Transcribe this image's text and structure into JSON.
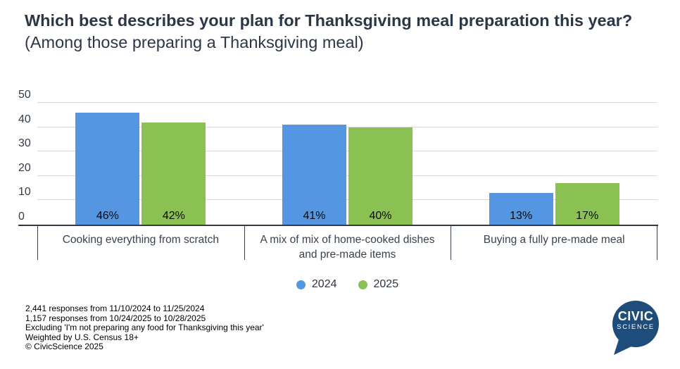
{
  "title": {
    "bold": "Which best describes your plan for Thanksgiving meal preparation this year?",
    "subtitle": " (Among those preparing a Thanksgiving meal)"
  },
  "chart_data": {
    "type": "bar",
    "categories": [
      "Cooking everything from scratch",
      "A mix of mix of home-cooked dishes and pre-made items",
      "Buying a fully pre-made meal"
    ],
    "series": [
      {
        "name": "2024",
        "color": "#5596e2",
        "values": [
          46,
          41,
          13
        ]
      },
      {
        "name": "2025",
        "color": "#8bc152",
        "values": [
          42,
          40,
          17
        ]
      }
    ],
    "value_suffix": "%",
    "ylim": [
      0,
      50
    ],
    "yticks": [
      0,
      10,
      20,
      30,
      40,
      50
    ],
    "grid": true,
    "legend_position": "bottom"
  },
  "footer": {
    "lines": [
      "2,441 responses from 11/10/2024 to 11/25/2024",
      "1,157 responses from 10/24/2025 to 10/28/2025",
      "Excluding 'I'm not preparing any food for Thanksgiving this year'",
      "Weighted by U.S. Census 18+",
      "© CivicScience 2025"
    ]
  },
  "logo": {
    "line1": "CIVIC",
    "line2": "SCIENCE",
    "color": "#1e4d7b"
  },
  "colors": {
    "series_2024": "#5596e2",
    "series_2025": "#8bc152",
    "grid": "#d8d8d8",
    "axis": "#333a45",
    "title_text": "#2b3647",
    "axis_text": "#39424d"
  }
}
